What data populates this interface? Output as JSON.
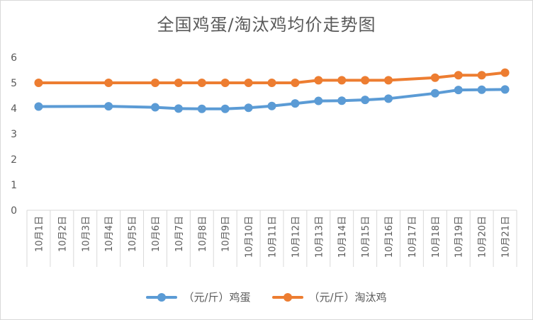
{
  "chart_data": {
    "type": "line",
    "title": "全国鸡蛋/淘汰鸡均价走势图",
    "categories": [
      "10月1日",
      "10月2日",
      "10月3日",
      "10月4日",
      "10月5日",
      "10月6日",
      "10月7日",
      "10月8日",
      "10月9日",
      "10月10日",
      "10月11日",
      "10月12日",
      "10月13日",
      "10月14日",
      "10月15日",
      "10月16日",
      "10月17日",
      "10月18日",
      "10月19日",
      "10月20日",
      "10月21日"
    ],
    "series": [
      {
        "name": "（元/斤）鸡蛋",
        "color": "#5b9bd5",
        "values": [
          4.07,
          null,
          null,
          4.08,
          null,
          4.04,
          3.99,
          3.98,
          3.98,
          4.02,
          4.09,
          4.19,
          4.29,
          4.3,
          4.33,
          4.38,
          null,
          4.59,
          4.72,
          4.73,
          4.74
        ]
      },
      {
        "name": "（元/斤）淘汰鸡",
        "color": "#ed7d31",
        "values": [
          5.0,
          null,
          null,
          5.0,
          null,
          5.0,
          5.0,
          5.0,
          5.0,
          5.0,
          5.0,
          5.0,
          5.1,
          5.1,
          5.1,
          5.1,
          null,
          5.2,
          5.3,
          5.3,
          5.4
        ]
      }
    ],
    "ylim": [
      0,
      6
    ],
    "yticks": [
      0,
      1,
      2,
      3,
      4,
      5,
      6
    ],
    "grid": false,
    "legend": "bottom"
  }
}
